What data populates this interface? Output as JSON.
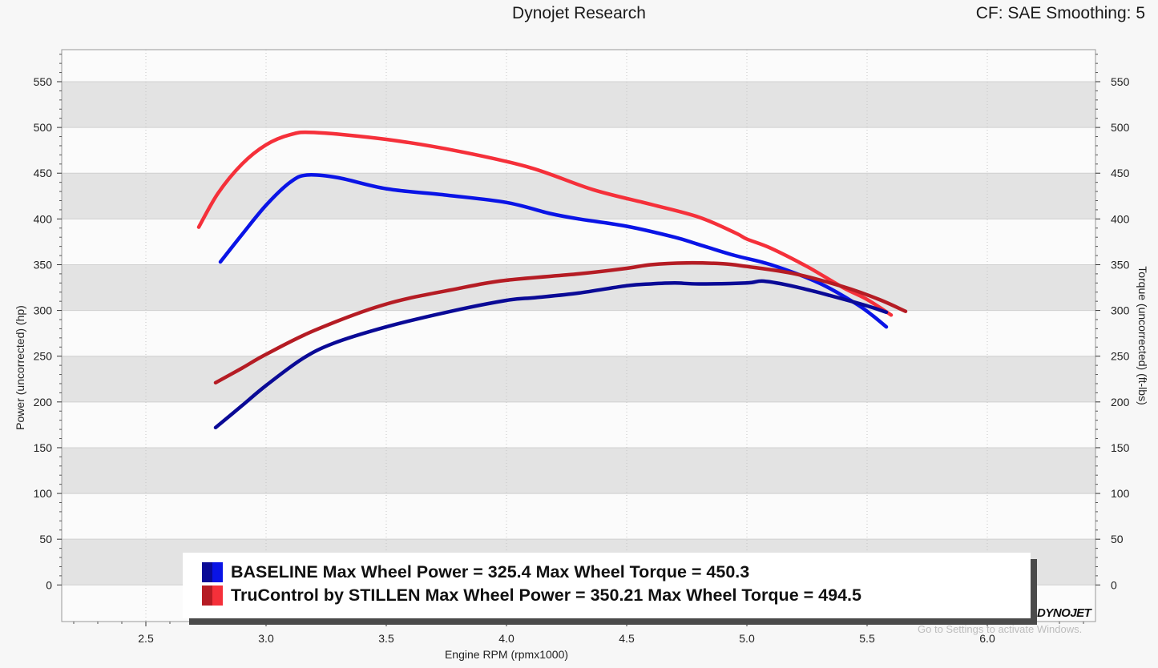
{
  "header": {
    "title": "Dynojet Research",
    "status": "CF: SAE Smoothing: 5"
  },
  "chart_data": {
    "type": "line",
    "title": "Dynojet Research",
    "xlabel": "Engine RPM (rpmx1000)",
    "ylabel_left": "Power (uncorrected) (hp)",
    "ylabel_right": "Torque (uncorrected) (ft-lbs)",
    "xlim": [
      2.15,
      6.45
    ],
    "ylim": [
      -40,
      585
    ],
    "x_ticks": [
      "2.5",
      "3.0",
      "3.5",
      "4.0",
      "4.5",
      "5.0",
      "5.5",
      "6.0"
    ],
    "y_ticks": [
      "0",
      "50",
      "100",
      "150",
      "200",
      "250",
      "300",
      "350",
      "400",
      "450",
      "500",
      "550"
    ],
    "y_right_ticks": [
      "0",
      "50",
      "100",
      "150",
      "200",
      "250",
      "300",
      "350",
      "400",
      "450",
      "500",
      "550"
    ],
    "grid": true,
    "series": [
      {
        "name": "BASELINE Max Wheel Torque",
        "color": "#0a14e6",
        "axis": "right",
        "points": [
          [
            2.81,
            353
          ],
          [
            2.9,
            383
          ],
          [
            3.0,
            415
          ],
          [
            3.1,
            440
          ],
          [
            3.17,
            448
          ],
          [
            3.3,
            445
          ],
          [
            3.5,
            433
          ],
          [
            3.75,
            426
          ],
          [
            4.0,
            418
          ],
          [
            4.18,
            406
          ],
          [
            4.3,
            400
          ],
          [
            4.5,
            392
          ],
          [
            4.7,
            380
          ],
          [
            4.8,
            372
          ],
          [
            4.95,
            360
          ],
          [
            5.1,
            350
          ],
          [
            5.3,
            330
          ],
          [
            5.45,
            308
          ],
          [
            5.52,
            295
          ],
          [
            5.58,
            282
          ]
        ]
      },
      {
        "name": "TruControl by STILLEN Max Wheel Torque",
        "color": "#f5303a",
        "axis": "right",
        "points": [
          [
            2.72,
            391
          ],
          [
            2.8,
            428
          ],
          [
            2.9,
            460
          ],
          [
            3.0,
            481
          ],
          [
            3.1,
            492
          ],
          [
            3.2,
            494.5
          ],
          [
            3.5,
            487
          ],
          [
            3.8,
            474
          ],
          [
            4.1,
            456
          ],
          [
            4.36,
            432
          ],
          [
            4.6,
            416
          ],
          [
            4.8,
            402
          ],
          [
            4.95,
            385
          ],
          [
            5.0,
            378
          ],
          [
            5.1,
            368
          ],
          [
            5.25,
            348
          ],
          [
            5.4,
            325
          ],
          [
            5.5,
            312
          ],
          [
            5.6,
            295
          ]
        ]
      },
      {
        "name": "BASELINE Max Wheel Power",
        "color": "#0a0a96",
        "axis": "left",
        "points": [
          [
            2.79,
            172
          ],
          [
            2.9,
            196
          ],
          [
            3.0,
            218
          ],
          [
            3.15,
            247
          ],
          [
            3.28,
            264
          ],
          [
            3.5,
            282
          ],
          [
            3.75,
            298
          ],
          [
            4.0,
            311
          ],
          [
            4.12,
            314
          ],
          [
            4.3,
            319
          ],
          [
            4.5,
            327
          ],
          [
            4.6,
            329
          ],
          [
            4.7,
            330
          ],
          [
            4.8,
            329
          ],
          [
            5.0,
            330
          ],
          [
            5.07,
            332
          ],
          [
            5.2,
            326
          ],
          [
            5.35,
            316
          ],
          [
            5.5,
            305
          ],
          [
            5.58,
            298
          ]
        ]
      },
      {
        "name": "TruControl by STILLEN Max Wheel Power",
        "color": "#b51c24",
        "axis": "left",
        "points": [
          [
            2.79,
            221
          ],
          [
            2.9,
            237
          ],
          [
            3.0,
            252
          ],
          [
            3.2,
            278
          ],
          [
            3.5,
            307
          ],
          [
            3.8,
            324
          ],
          [
            4.0,
            333
          ],
          [
            4.3,
            340
          ],
          [
            4.5,
            346
          ],
          [
            4.6,
            350
          ],
          [
            4.75,
            352
          ],
          [
            4.9,
            351
          ],
          [
            5.0,
            348
          ],
          [
            5.2,
            340
          ],
          [
            5.4,
            326
          ],
          [
            5.55,
            312
          ],
          [
            5.66,
            299
          ]
        ]
      }
    ]
  },
  "legend": {
    "entries": [
      {
        "text": "BASELINE Max Wheel Power = 325.4 Max Wheel Torque = 450.3",
        "colors": [
          "#0a0a96",
          "#0a14e6"
        ]
      },
      {
        "text": "TruControl by STILLEN Max Wheel Power = 350.21 Max Wheel Torque = 494.5",
        "colors": [
          "#b51c24",
          "#f5303a"
        ]
      }
    ]
  },
  "watermark": {
    "text": "Go to Settings to activate Windows."
  },
  "logo": {
    "text": "DYNOJET"
  }
}
